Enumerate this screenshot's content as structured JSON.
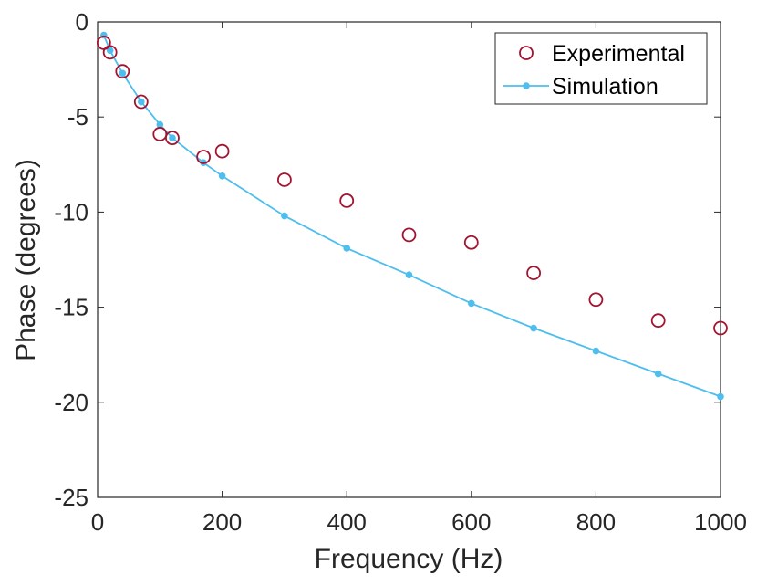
{
  "chart_data": {
    "type": "scatter",
    "title": "",
    "xlabel": "Frequency (Hz)",
    "ylabel": "Phase (degrees)",
    "xlim": [
      0,
      1000
    ],
    "ylim": [
      -25,
      0
    ],
    "xticks": [
      0,
      200,
      400,
      600,
      800,
      1000
    ],
    "yticks": [
      0,
      -5,
      -10,
      -15,
      -20,
      -25
    ],
    "xtick_labels": [
      "0",
      "200",
      "400",
      "600",
      "800",
      "1000"
    ],
    "ytick_labels": [
      "0",
      "-5",
      "-10",
      "-15",
      "-20",
      "-25"
    ],
    "grid": false,
    "legend_position": "top-right",
    "series": [
      {
        "name": "Experimental",
        "style": "open-circle",
        "color": "#A2142F",
        "x": [
          10,
          20,
          40,
          70,
          100,
          120,
          170,
          200,
          300,
          400,
          500,
          600,
          700,
          800,
          900,
          1000
        ],
        "y": [
          -1.1,
          -1.6,
          -2.6,
          -4.2,
          -5.9,
          -6.1,
          -7.1,
          -6.8,
          -8.3,
          -9.4,
          -11.2,
          -11.6,
          -13.2,
          -14.6,
          -15.7,
          -16.1
        ]
      },
      {
        "name": "Simulation",
        "style": "line-with-dots",
        "color": "#4DBEEE",
        "x": [
          10,
          20,
          40,
          70,
          100,
          120,
          170,
          200,
          300,
          400,
          500,
          600,
          700,
          800,
          900,
          1000
        ],
        "y": [
          -0.7,
          -1.5,
          -2.7,
          -4.2,
          -5.4,
          -6.1,
          -7.4,
          -8.1,
          -10.2,
          -11.9,
          -13.3,
          -14.8,
          -16.1,
          -17.3,
          -18.5,
          -19.7
        ]
      }
    ]
  }
}
